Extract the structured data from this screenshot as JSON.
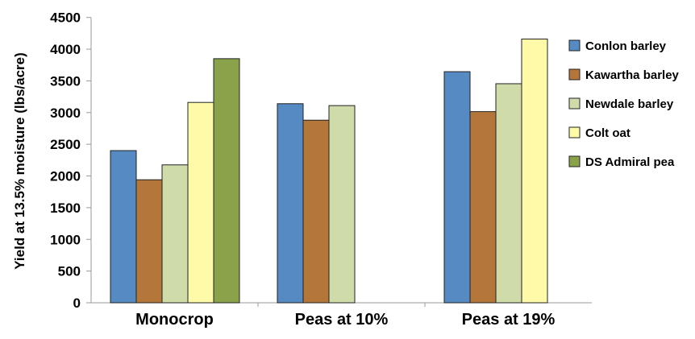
{
  "chart_data": {
    "type": "bar",
    "title": "",
    "xlabel": "",
    "ylabel": "Yield at 13.5% moisture (lbs/acre)",
    "ylim": [
      0,
      4500
    ],
    "yticks": [
      0,
      500,
      1000,
      1500,
      2000,
      2500,
      3000,
      3500,
      4000,
      4500
    ],
    "grid": false,
    "legend_position": "right",
    "categories": [
      "Monocrop",
      "Peas at 10%",
      "Peas at 19%"
    ],
    "series": [
      {
        "name": "Conlon barley",
        "color": "#558ac3",
        "values": [
          2400,
          3140,
          3645
        ]
      },
      {
        "name": "Kawartha barley",
        "color": "#b5763a",
        "values": [
          1940,
          2880,
          3015
        ]
      },
      {
        "name": "Newdale barley",
        "color": "#cfdcaa",
        "values": [
          2175,
          3110,
          3455
        ]
      },
      {
        "name": "Colt oat",
        "color": "#fffaa8",
        "values": [
          3160,
          null,
          4160
        ]
      },
      {
        "name": "DS Admiral pea",
        "color": "#8aa34b",
        "values": [
          3850,
          null,
          null
        ]
      }
    ]
  }
}
